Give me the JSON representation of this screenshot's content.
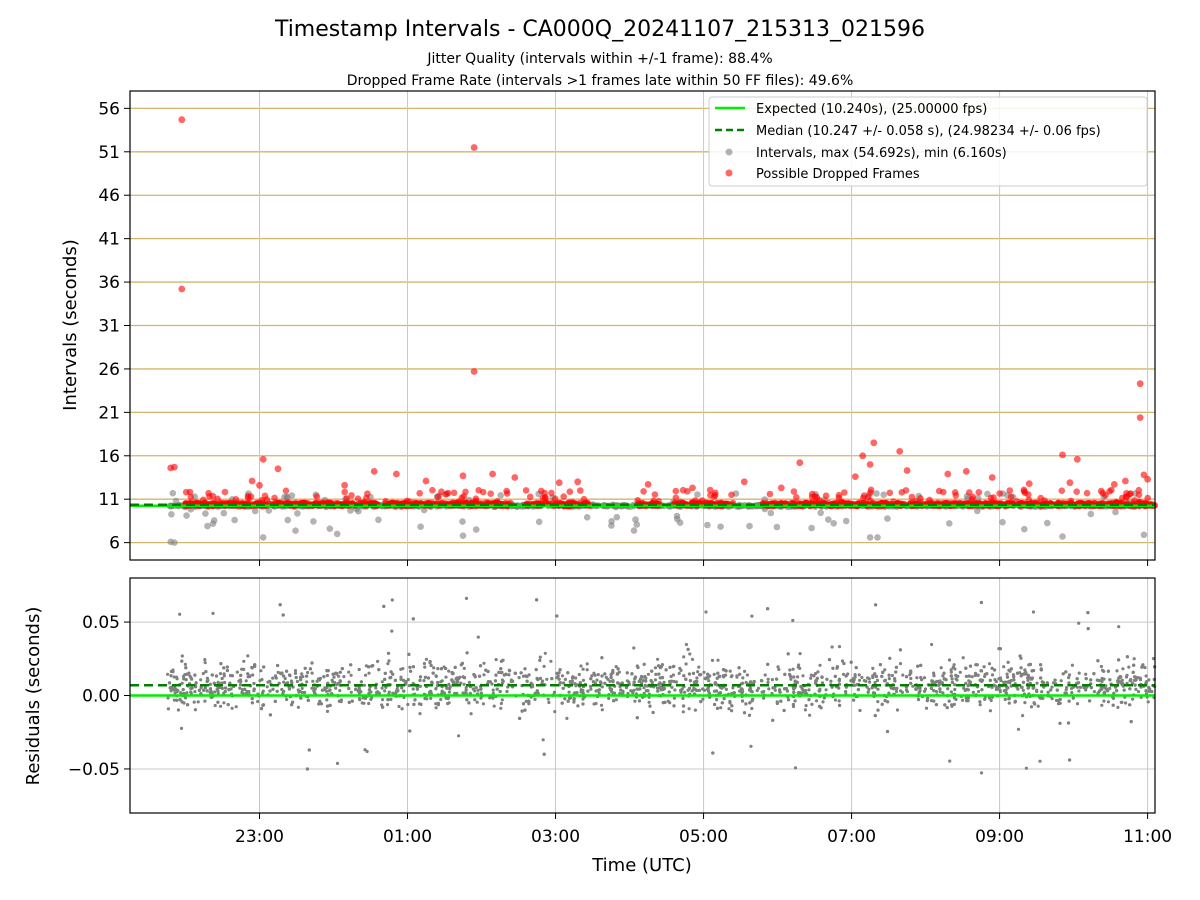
{
  "figure": {
    "title": "Timestamp Intervals - CA000Q_20241107_215313_021596",
    "subtitle_1": "Jitter Quality (intervals within +/-1 frame): 88.4%",
    "subtitle_2": "Dropped Frame Rate (intervals >1 frames late within 50 FF files): 49.6%"
  },
  "colors": {
    "expected": "#00ee00",
    "median": "#008000",
    "intervals": "#808080",
    "dropped": "#ff0000",
    "hgrid": "#d2b66a",
    "vgrid": "#c8c8c8"
  },
  "chart_data": [
    {
      "type": "scatter",
      "xlabel": "",
      "ylabel": "Intervals (seconds)",
      "x_unit": "hours since 00:00 UTC",
      "xlim": [
        -2.75,
        11.1
      ],
      "ylim": [
        4,
        58
      ],
      "yticks": [
        6,
        11,
        16,
        21,
        26,
        31,
        36,
        41,
        46,
        51,
        56
      ],
      "grid": "on",
      "legend_position": "top-right",
      "legend": [
        "Expected (10.240s), (25.00000 fps)",
        "Median (10.247 +/- 0.058 s), (24.98234 +/- 0.06 fps)",
        "Intervals, max (54.692s), min (6.160s)",
        "Possible Dropped Frames"
      ],
      "expected_value": 10.24,
      "median_value": 10.247,
      "dropped_outliers": [
        {
          "x": -2.05,
          "y": 54.7
        },
        {
          "x": -2.05,
          "y": 35.2
        },
        {
          "x": 1.9,
          "y": 51.5
        },
        {
          "x": 1.9,
          "y": 25.7
        },
        {
          "x": 10.9,
          "y": 24.3
        },
        {
          "x": 10.9,
          "y": 20.4
        },
        {
          "x": 7.3,
          "y": 17.5
        },
        {
          "x": 7.65,
          "y": 16.5
        },
        {
          "x": 9.85,
          "y": 16.1
        },
        {
          "x": 10.05,
          "y": 15.6
        },
        {
          "x": -0.95,
          "y": 15.6
        },
        {
          "x": 6.3,
          "y": 15.2
        },
        {
          "x": -2.2,
          "y": 14.6
        },
        {
          "x": -2.15,
          "y": 14.7
        },
        {
          "x": 7.15,
          "y": 16.0
        },
        {
          "x": 7.25,
          "y": 15.0
        },
        {
          "x": -0.75,
          "y": 14.5
        },
        {
          "x": 0.55,
          "y": 14.2
        },
        {
          "x": 0.85,
          "y": 13.9
        },
        {
          "x": 2.45,
          "y": 13.5
        },
        {
          "x": 3.3,
          "y": 13.0
        },
        {
          "x": 4.25,
          "y": 12.7
        },
        {
          "x": 5.55,
          "y": 13.0
        },
        {
          "x": 8.9,
          "y": 13.5
        },
        {
          "x": 9.4,
          "y": 12.8
        },
        {
          "x": 10.7,
          "y": 13.1
        },
        {
          "x": 11.0,
          "y": 13.3
        },
        {
          "x": 1.75,
          "y": 13.7
        },
        {
          "x": 8.3,
          "y": 13.9
        },
        {
          "x": 7.75,
          "y": 14.3
        },
        {
          "x": 8.55,
          "y": 14.2
        },
        {
          "x": 10.95,
          "y": 13.8
        },
        {
          "x": -1.1,
          "y": 13.1
        },
        {
          "x": -1.0,
          "y": 12.6
        },
        {
          "x": 0.15,
          "y": 12.6
        },
        {
          "x": 1.25,
          "y": 13.1
        },
        {
          "x": 2.15,
          "y": 13.9
        },
        {
          "x": 3.05,
          "y": 12.9
        },
        {
          "x": 4.85,
          "y": 12.3
        },
        {
          "x": 6.05,
          "y": 12.3
        },
        {
          "x": 7.05,
          "y": 13.6
        },
        {
          "x": 9.95,
          "y": 12.9
        },
        {
          "x": 10.55,
          "y": 12.7
        }
      ]
    },
    {
      "type": "scatter",
      "xlabel": "Time (UTC)",
      "ylabel": "Residuals (seconds)",
      "x_unit": "hours since 00:00 UTC",
      "xlim": [
        -2.75,
        11.1
      ],
      "ylim": [
        -0.08,
        0.08
      ],
      "yticks": [
        0.05,
        0.0,
        -0.05
      ],
      "ytick_labels": [
        "0.05",
        "0.00",
        "−0.05"
      ],
      "xticks": [
        -1,
        1,
        3,
        5,
        7,
        9,
        11
      ],
      "xtick_labels": [
        "23:00",
        "01:00",
        "03:00",
        "05:00",
        "07:00",
        "09:00",
        "11:00"
      ],
      "grid": "on",
      "expected_value": 0.0,
      "median_value": 0.007
    }
  ]
}
